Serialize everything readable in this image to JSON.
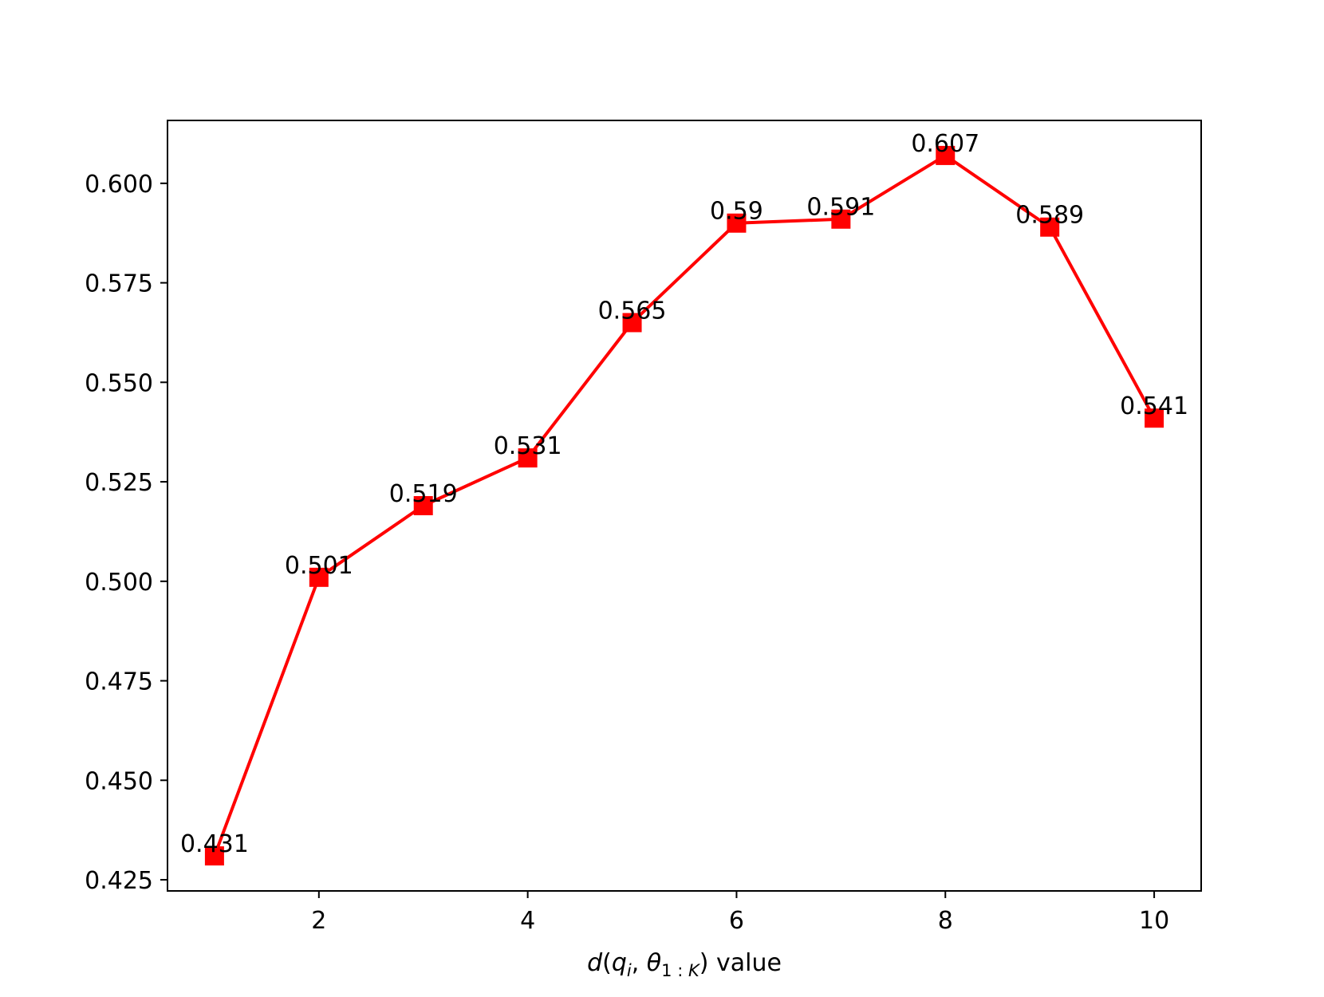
{
  "chart_data": {
    "type": "line",
    "title": "",
    "xlabel": "value",
    "ylabel": "",
    "x": [
      1,
      2,
      3,
      4,
      5,
      6,
      7,
      8,
      9,
      10
    ],
    "series": [
      {
        "values": [
          0.431,
          0.501,
          0.519,
          0.531,
          0.565,
          0.59,
          0.591,
          0.607,
          0.589,
          0.541
        ],
        "labels": [
          "0.431",
          "0.501",
          "0.519",
          "0.531",
          "0.565",
          "0.59",
          "0.591",
          "0.607",
          "0.589",
          "0.541"
        ],
        "color": "#ff0000",
        "marker": "square"
      }
    ],
    "xlim": [
      0.55,
      10.45
    ],
    "ylim": [
      0.4222,
      0.6158
    ],
    "xticks": [
      2,
      4,
      6,
      8,
      10
    ],
    "xtick_labels": [
      "2",
      "4",
      "6",
      "8",
      "10"
    ],
    "yticks": [
      0.425,
      0.45,
      0.475,
      0.5,
      0.525,
      0.55,
      0.575,
      0.6
    ],
    "ytick_labels": [
      "0.425",
      "0.450",
      "0.475",
      "0.500",
      "0.525",
      "0.550",
      "0.575",
      "0.600"
    ],
    "grid": false,
    "legend": "none"
  }
}
